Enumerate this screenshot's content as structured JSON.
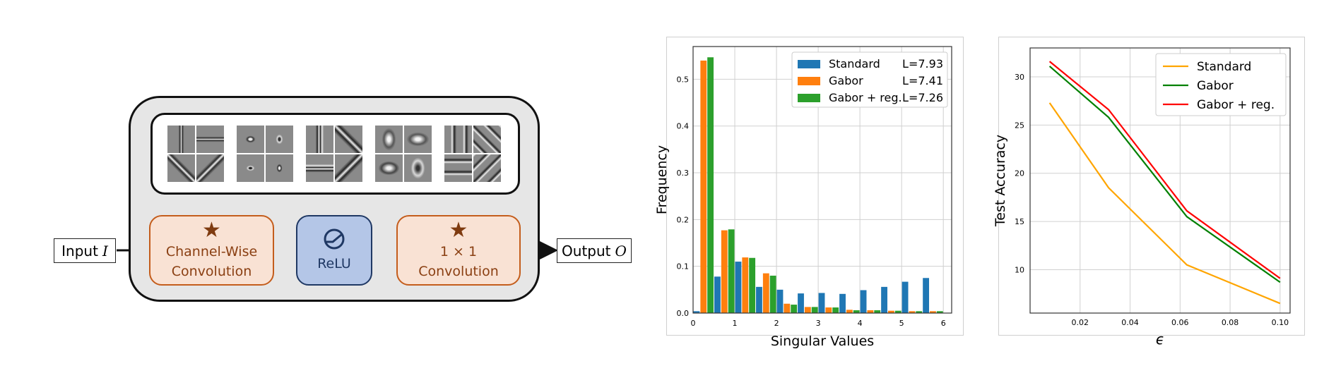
{
  "diagram": {
    "input_label": "Input",
    "input_symbol": "I",
    "output_label": "Output",
    "output_symbol": "O",
    "channel_wise_line1": "Channel-Wise",
    "channel_wise_line2": "Convolution",
    "relu_label": "ReLU",
    "pointwise_line1": "1 × 1",
    "pointwise_line2": "Convolution",
    "star_icon": "star-icon",
    "relu_icon": "relu-activation-icon",
    "colors": {
      "orange_fill": "#f9e2d4",
      "orange_border": "#c45d1c",
      "blue_fill": "#b4c6e7",
      "blue_border": "#1f3864",
      "block_fill": "#e6e6e6"
    }
  },
  "chart_data": [
    {
      "type": "bar",
      "xlabel": "Singular Values",
      "ylabel": "Frequency",
      "xlim": [
        0,
        6.2
      ],
      "ylim": [
        0,
        0.57
      ],
      "xticks": [
        0,
        1,
        2,
        3,
        4,
        5,
        6
      ],
      "yticks": [
        0.0,
        0.1,
        0.2,
        0.3,
        0.4,
        0.5
      ],
      "grid": true,
      "legend_position": "top-right",
      "bin_centers": [
        0.25,
        0.75,
        1.25,
        1.75,
        2.25,
        2.75,
        3.25,
        3.75,
        4.25,
        4.75,
        5.25,
        5.75
      ],
      "series": [
        {
          "name": "Standard",
          "legend_note": "L=7.93",
          "color": "#1f77b4",
          "values": [
            0.004,
            0.078,
            0.11,
            0.056,
            0.05,
            0.042,
            0.043,
            0.041,
            0.049,
            0.056,
            0.067,
            0.075
          ]
        },
        {
          "name": "Gabor",
          "legend_note": "L=7.41",
          "color": "#ff7f0e",
          "values": [
            0.54,
            0.177,
            0.119,
            0.085,
            0.02,
            0.013,
            0.012,
            0.007,
            0.006,
            0.005,
            0.004,
            0.004
          ]
        },
        {
          "name": "Gabor + reg.",
          "legend_note": "L=7.26",
          "color": "#2ca02c",
          "values": [
            0.547,
            0.179,
            0.118,
            0.08,
            0.018,
            0.013,
            0.012,
            0.006,
            0.006,
            0.005,
            0.004,
            0.004
          ]
        }
      ]
    },
    {
      "type": "line",
      "xlabel": "ϵ",
      "ylabel": "Test Accuracy",
      "xlim": [
        0.0,
        0.104
      ],
      "ylim": [
        5.5,
        33
      ],
      "xticks": [
        0.02,
        0.04,
        0.06,
        0.08,
        0.1
      ],
      "xtick_labels": [
        "0.02",
        "0.04",
        "0.06",
        "0.08",
        "0.10"
      ],
      "yticks": [
        10,
        15,
        20,
        25,
        30
      ],
      "grid": true,
      "legend_position": "top-right",
      "x": [
        0.0078,
        0.0314,
        0.0627,
        0.1
      ],
      "series": [
        {
          "name": "Standard",
          "color": "#ffa500",
          "values": [
            27.3,
            18.5,
            10.5,
            6.5
          ]
        },
        {
          "name": "Gabor",
          "color": "#008000",
          "values": [
            31.1,
            25.8,
            15.5,
            8.7
          ]
        },
        {
          "name": "Gabor + reg.",
          "color": "#ff0000",
          "values": [
            31.6,
            26.6,
            16.1,
            9.1
          ]
        }
      ]
    }
  ]
}
